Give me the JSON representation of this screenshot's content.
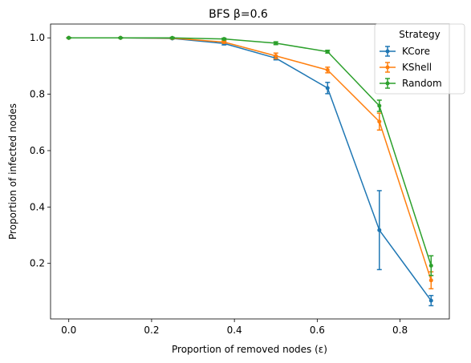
{
  "chart_data": {
    "type": "line",
    "title": "BFS β=0.6",
    "xlabel": "Proportion of removed nodes (ε)",
    "ylabel": "Proportion of infected nodes",
    "xlim": [
      -0.044,
      0.919
    ],
    "ylim": [
      0.003,
      1.049
    ],
    "xticks": [
      0.0,
      0.2,
      0.4,
      0.6,
      0.8
    ],
    "xtick_labels": [
      "0.0",
      "0.2",
      "0.4",
      "0.6",
      "0.8"
    ],
    "yticks": [
      0.2,
      0.4,
      0.6,
      0.8,
      1.0
    ],
    "ytick_labels": [
      "0.2",
      "0.4",
      "0.6",
      "0.8",
      "1.0"
    ],
    "grid": false,
    "legend": {
      "title": "Strategy",
      "placement": "top-right"
    },
    "x": [
      0.0,
      0.125,
      0.25,
      0.375,
      0.5,
      0.625,
      0.75,
      0.875
    ],
    "series": [
      {
        "name": "KCore",
        "color": "#1f77b4",
        "values": [
          1.0,
          1.0,
          0.998,
          0.98,
          0.928,
          0.822,
          0.318,
          0.068
        ],
        "errors": [
          0.001,
          0.001,
          0.002,
          0.005,
          0.006,
          0.02,
          0.14,
          0.018
        ]
      },
      {
        "name": "KShell",
        "color": "#ff7f0e",
        "values": [
          1.0,
          1.0,
          0.999,
          0.985,
          0.936,
          0.886,
          0.703,
          0.14
        ],
        "errors": [
          0.001,
          0.001,
          0.002,
          0.004,
          0.01,
          0.01,
          0.03,
          0.03
        ]
      },
      {
        "name": "Random",
        "color": "#2ca02c",
        "values": [
          1.0,
          1.0,
          1.0,
          0.996,
          0.981,
          0.951,
          0.759,
          0.192
        ],
        "errors": [
          0.001,
          0.001,
          0.002,
          0.003,
          0.005,
          0.005,
          0.02,
          0.035
        ]
      }
    ]
  }
}
